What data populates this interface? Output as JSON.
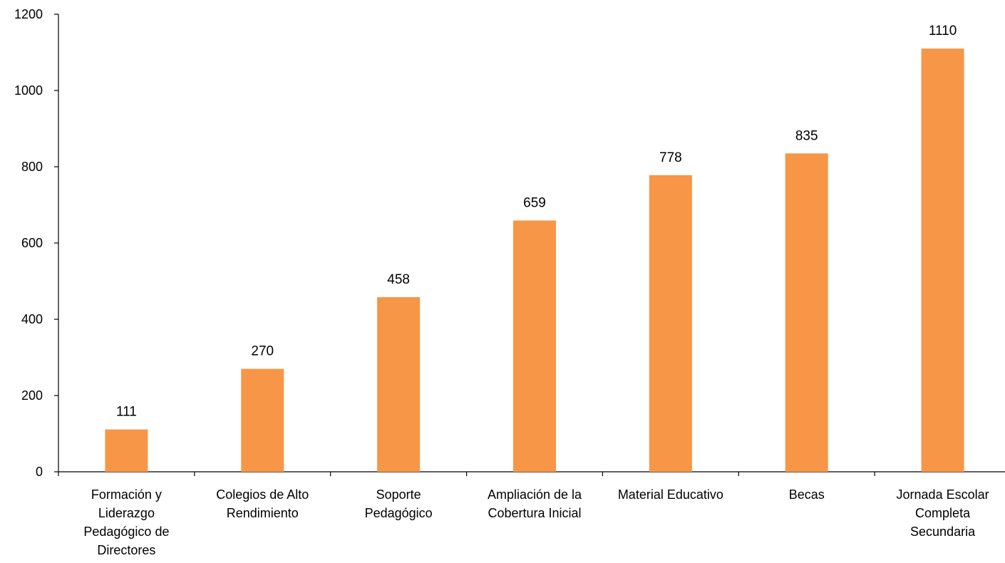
{
  "chart_data": {
    "type": "bar",
    "title": "",
    "xlabel": "",
    "ylabel": "",
    "categories": [
      [
        "Formación y",
        "Liderazgo",
        "Pedagógico de",
        "Directores"
      ],
      [
        "Colegios de Alto",
        "Rendimiento"
      ],
      [
        "Soporte",
        "Pedagógico"
      ],
      [
        "Ampliación de la",
        "Cobertura Inicial"
      ],
      [
        "Material Educativo"
      ],
      [
        "Becas"
      ],
      [
        "Jornada Escolar",
        "Completa",
        "Secundaria"
      ]
    ],
    "values": [
      111,
      270,
      458,
      659,
      778,
      835,
      1110
    ],
    "value_labels": [
      "111",
      "270",
      "458",
      "659",
      "778",
      "835",
      "1110"
    ],
    "ylim": [
      0,
      1200
    ],
    "yticks": [
      0,
      200,
      400,
      600,
      800,
      1000,
      1200
    ],
    "ytick_labels": [
      "0",
      "200",
      "400",
      "600",
      "800",
      "1000",
      "1200"
    ],
    "grid": false,
    "legend": "none",
    "bar_color": "#F79646"
  }
}
